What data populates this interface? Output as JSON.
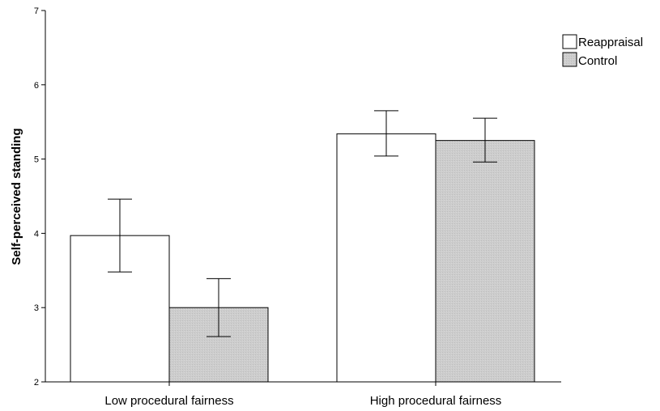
{
  "chart_data": {
    "type": "bar",
    "title": "",
    "xlabel": "",
    "ylabel": "Self-perceived standing",
    "ylim": [
      2,
      7
    ],
    "yticks": [
      2,
      3,
      4,
      5,
      6,
      7
    ],
    "categories": [
      "Low procedural fairness",
      "High procedural fairness"
    ],
    "series": [
      {
        "name": "Reappraisal",
        "color": "#ffffff",
        "values": [
          3.97,
          5.34
        ],
        "error_low": [
          3.48,
          5.04
        ],
        "error_high": [
          4.46,
          5.65
        ]
      },
      {
        "name": "Control",
        "color": "#cdcdcd",
        "values": [
          3.0,
          5.25
        ],
        "error_low": [
          2.61,
          4.96
        ],
        "error_high": [
          3.39,
          5.55
        ]
      }
    ],
    "grid": false,
    "legend": "top-right"
  }
}
